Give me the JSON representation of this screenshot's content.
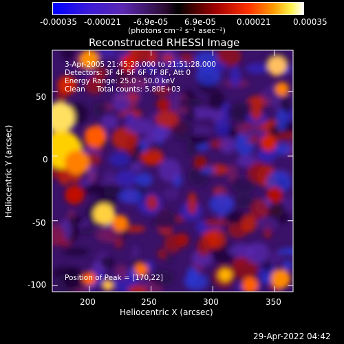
{
  "chart_data": {
    "type": "heatmap",
    "title": "Reconstructed RHESSI Image",
    "xlabel": "Heliocentric X (arcsec)",
    "ylabel": "Heliocentric Y (arcsec)",
    "xlim": [
      170,
      365
    ],
    "ylim": [
      -105,
      82
    ],
    "x_ticks": [
      200,
      250,
      300,
      350
    ],
    "y_ticks": [
      50,
      0,
      -50,
      -100
    ],
    "colorbar": {
      "range": [
        -0.00035,
        0.00035
      ],
      "tick_labels": [
        "-0.00035",
        "-0.00021",
        "-6.9e-05",
        "6.9e-05",
        "0.00021",
        "0.00035"
      ],
      "units": "(photons cm⁻² s⁻¹ asec⁻²)",
      "colormap": [
        "#0000ff",
        "#6a2fbf",
        "#000000",
        "#8b0000",
        "#ff4400",
        "#ffd700",
        "#ffffff"
      ]
    },
    "annotations": [
      "3-Apr-2005 21:45:28.000 to 21:51:28.000",
      "Detectors: 3F 4F 5F 6F 7F 8F, Att 0",
      "Energy Range: 25.0 - 50.0 keV",
      "Clean     Total counts: 5.80E+03"
    ],
    "peak_label": "Position of Peak = [170,22]",
    "peak_position": [
      170,
      22
    ]
  },
  "timestamp": "29-Apr-2022 04:42"
}
